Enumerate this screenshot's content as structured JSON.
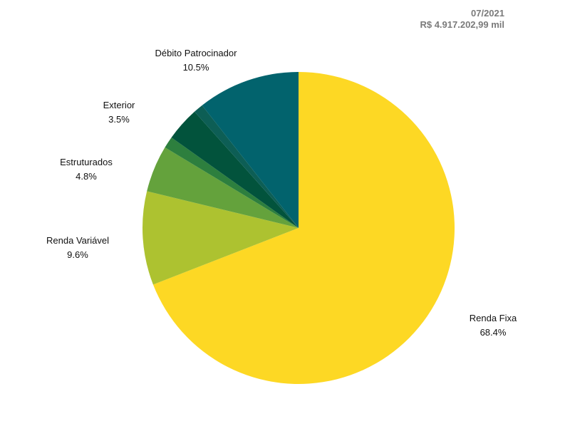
{
  "header": {
    "date": "07/2021",
    "total": "R$ 4.917.202,99 mil"
  },
  "chart_data": {
    "type": "pie",
    "title": "",
    "start_angle_deg": 0,
    "direction": "clockwise",
    "slices": [
      {
        "label": "Renda Fixa",
        "value": 68.4,
        "value_label": "68.4%",
        "color": "#FDD824",
        "show_label": true
      },
      {
        "label": "Renda Variável",
        "value": 9.6,
        "value_label": "9.6%",
        "color": "#ADC230",
        "show_label": true
      },
      {
        "label": "Estruturados",
        "value": 4.8,
        "value_label": "4.8%",
        "color": "#64A23C",
        "show_label": true
      },
      {
        "label": "",
        "value": 1.2,
        "value_label": "",
        "color": "#2D7F3E",
        "show_label": false
      },
      {
        "label": "Exterior",
        "value": 3.5,
        "value_label": "3.5%",
        "color": "#02533C",
        "show_label": true
      },
      {
        "label": "",
        "value": 1.0,
        "value_label": "",
        "color": "#0D5E55",
        "show_label": false
      },
      {
        "label": "Débito Patrocinador",
        "value": 10.5,
        "value_label": "10.5%",
        "color": "#02636D",
        "show_label": true
      }
    ]
  }
}
